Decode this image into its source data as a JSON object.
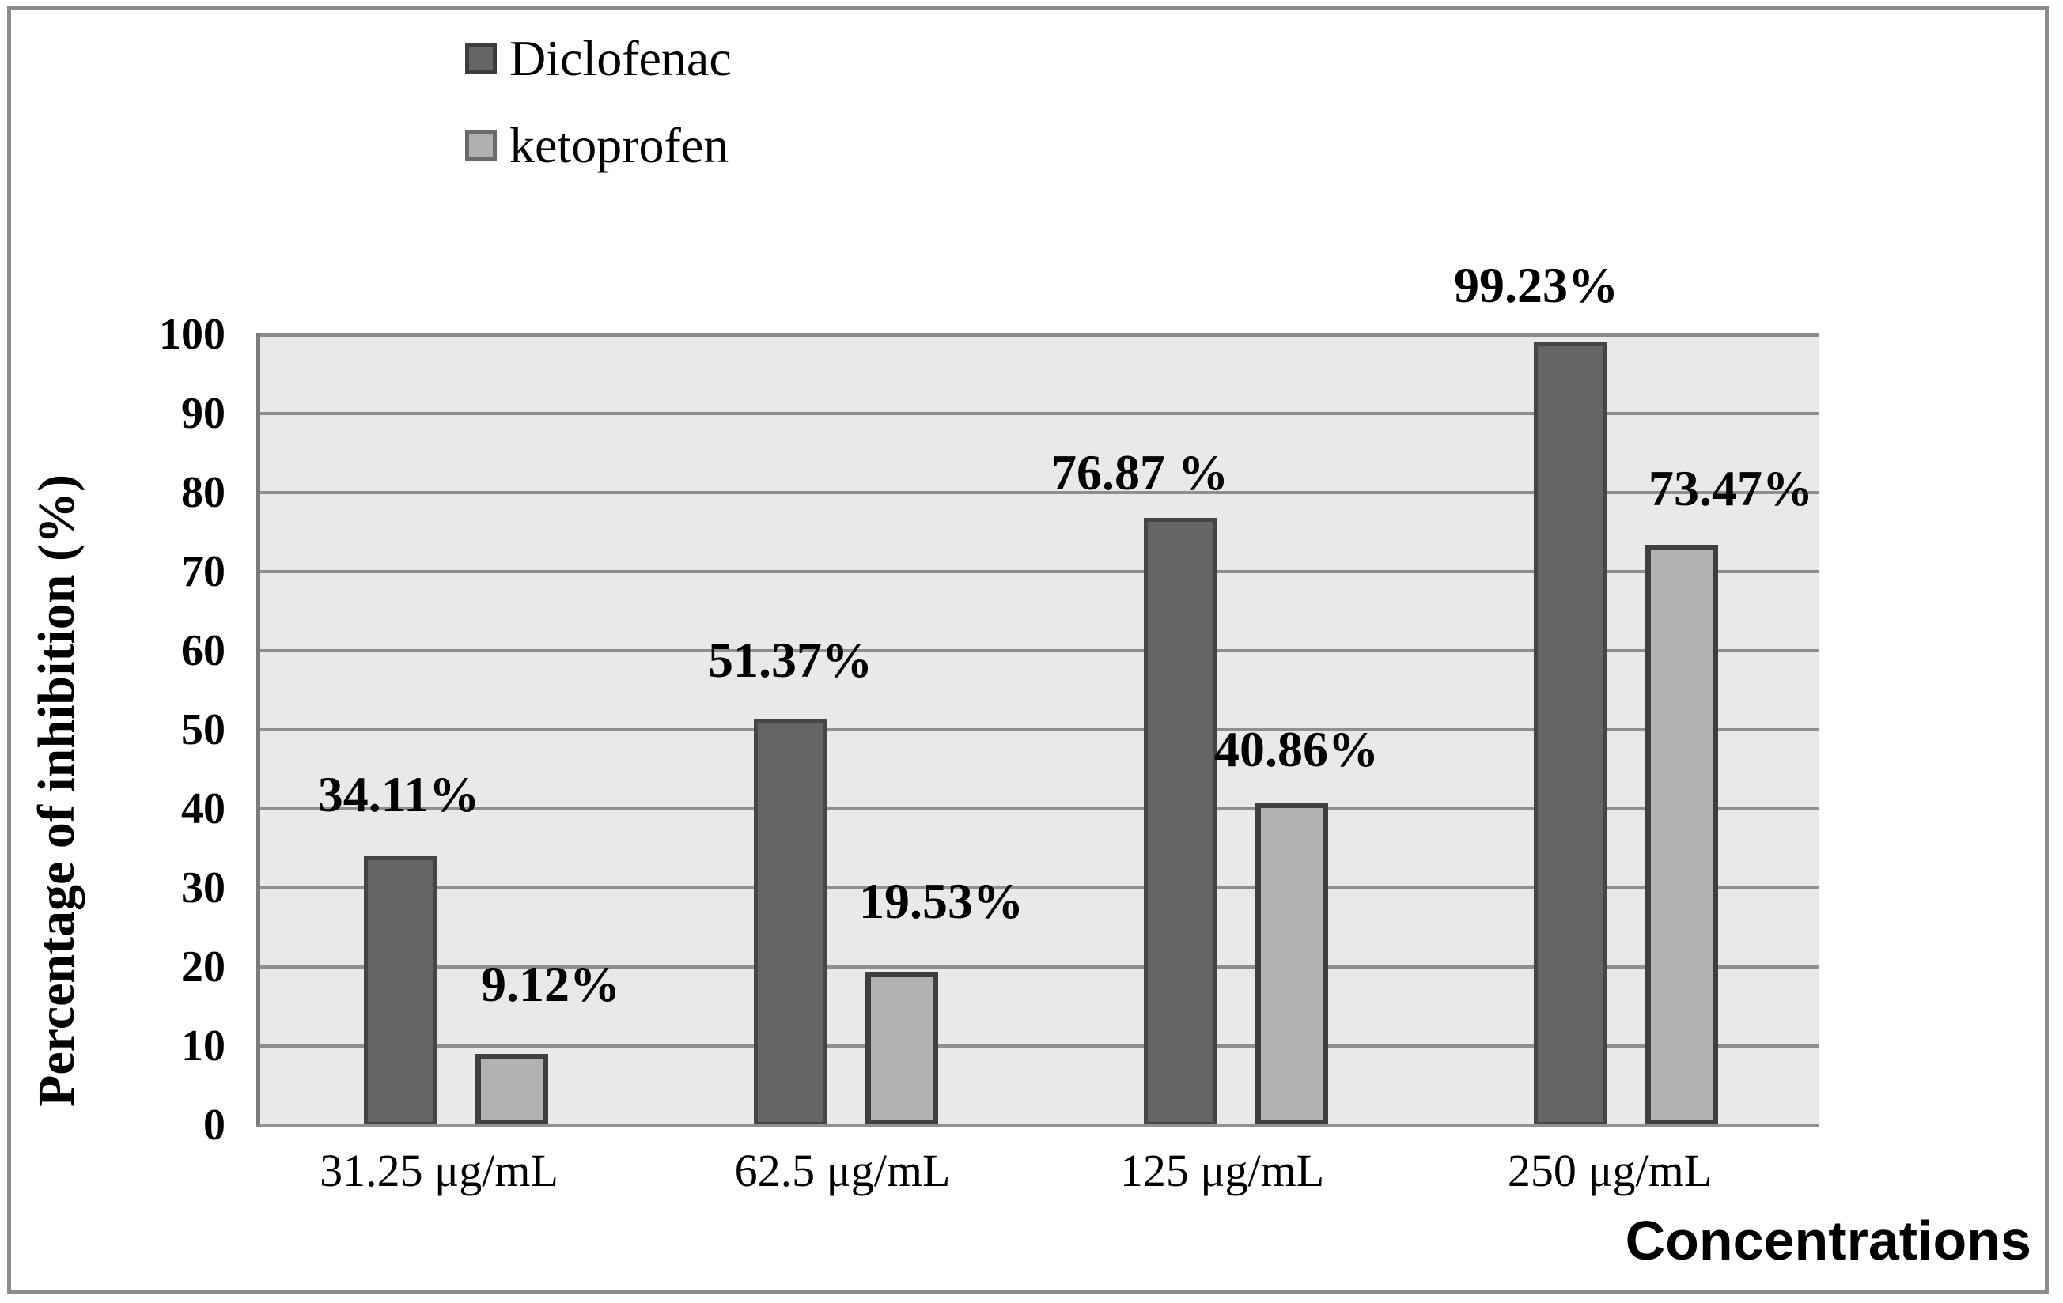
{
  "figure": {
    "background": "#ffffff",
    "frame_color": "#8c8c8c"
  },
  "legend": {
    "items": [
      {
        "label": "Diclofenac",
        "swatch_fill": "#656565",
        "swatch_border": "#3d3d3d"
      },
      {
        "label": "ketoprofen",
        "swatch_fill": "#b0b0b0",
        "swatch_border": "#6a6a6a"
      }
    ]
  },
  "chart_data": {
    "type": "bar",
    "title": "",
    "categories": [
      "31.25 μg/mL",
      "62.5 μg/mL",
      "125 μg/mL",
      "250 μg/mL"
    ],
    "series": [
      {
        "name": "Diclofenac",
        "values": [
          34.11,
          51.37,
          76.87,
          99.23
        ],
        "data_labels": [
          "34.11%",
          "51.37%",
          "76.87 %",
          "99.23%"
        ],
        "fill": "#656565",
        "border": "#454545"
      },
      {
        "name": "ketoprofen",
        "values": [
          9.12,
          19.53,
          40.86,
          73.47
        ],
        "data_labels": [
          "9.12%",
          "19.53%",
          "40.86%",
          "73.47%"
        ],
        "fill": "#b2b2b2",
        "border": "#3f3f3f"
      }
    ],
    "xlabel": "Concentrations",
    "ylabel": "Percentage of inhibition (%)",
    "ylim": [
      0,
      100
    ],
    "ytick_step": 10,
    "ytick_labels": [
      "100",
      "90",
      "80",
      "70",
      "60",
      "50",
      "40",
      "30",
      "20",
      "10",
      "0"
    ],
    "grid": true,
    "plot_bg": "#e9e9e9",
    "grid_color": "#8f8f8f",
    "axis_color": "#7c7c7c",
    "legend_position": "top-left"
  }
}
